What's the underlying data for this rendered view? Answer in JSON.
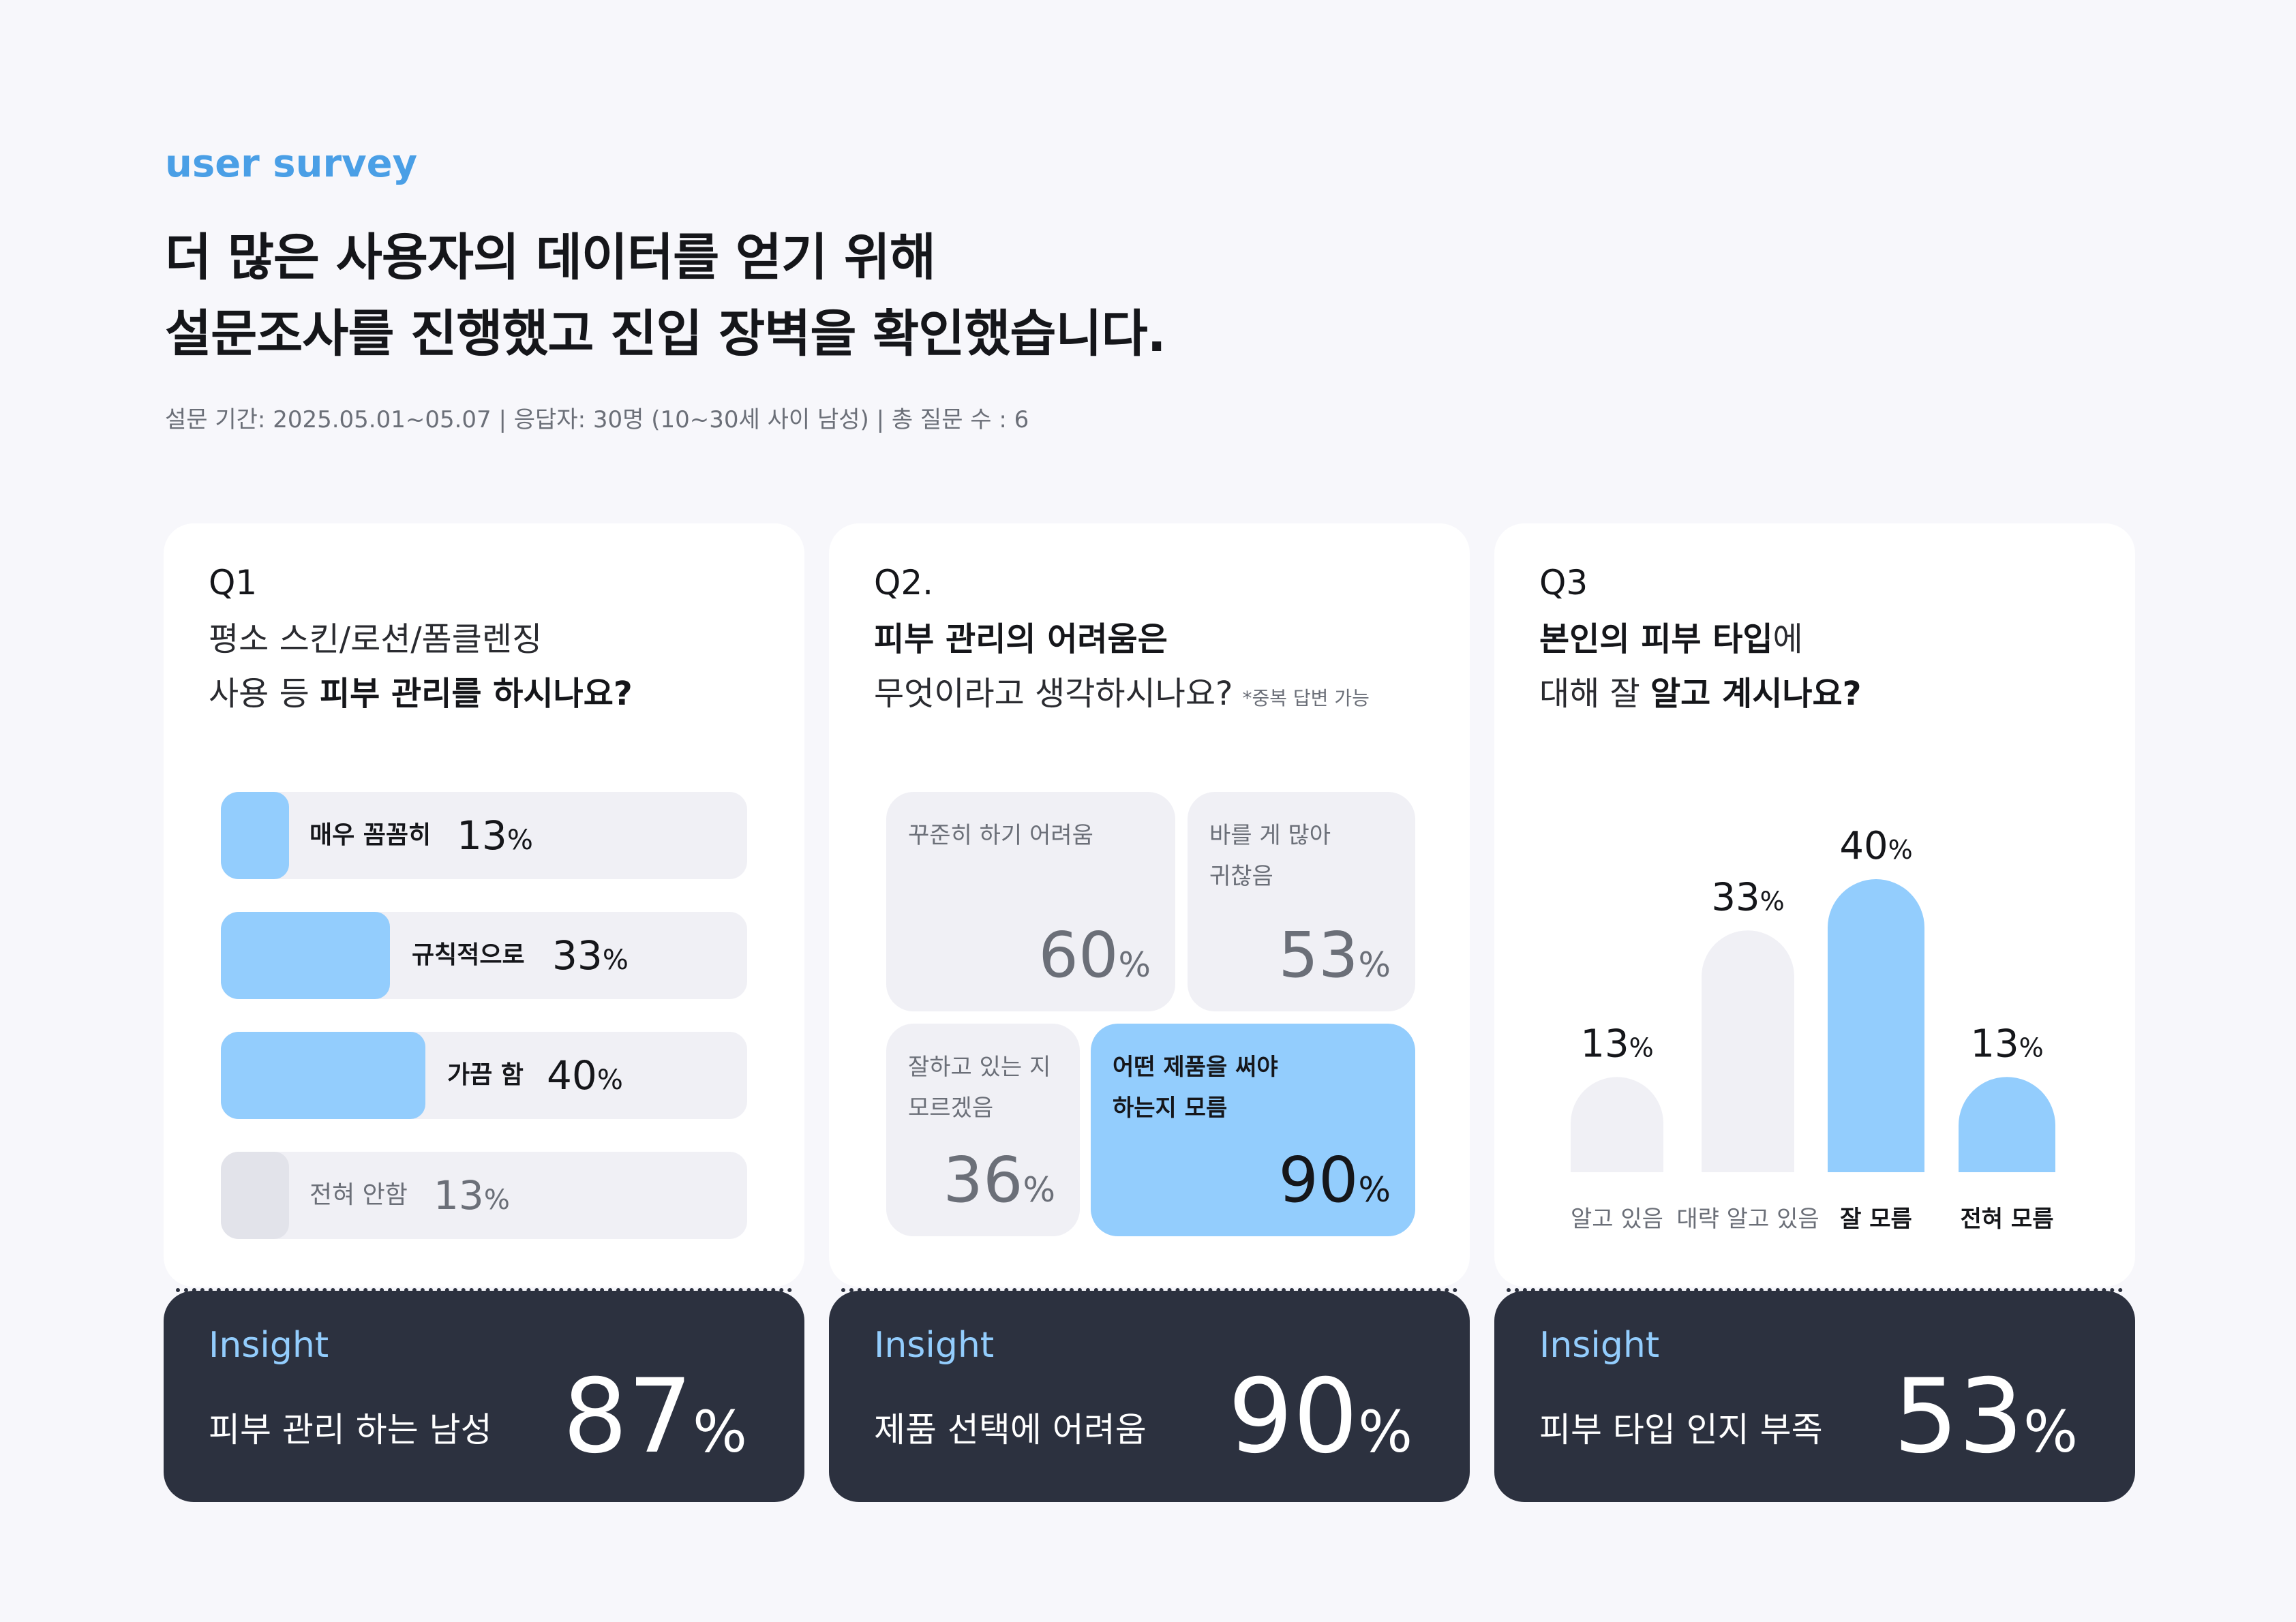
{
  "eyebrow": "user survey",
  "headline": {
    "line1": "더 많은 사용자의 데이터를 얻기 위해",
    "line2": "설문조사를 진행했고 진입 장벽을 확인했습니다."
  },
  "meta": "설문 기간: 2025.05.01~05.07 | 응답자: 30명 (10~30세 사이 남성) | 총 질문 수 : 6",
  "colors": {
    "accent": "#4a9fe6",
    "highlight": "#93cdfd",
    "muted": "#f0f0f5",
    "dark": "#2c313f"
  },
  "q1": {
    "num": "Q1",
    "line1": "평소 스킨/로션/폼클렌징",
    "line2_pre": "사용 등 ",
    "line2_bold": "피부 관리를 하시나요?",
    "options": [
      {
        "label": "매우 꼼꼼히",
        "value": "13",
        "unit": "%"
      },
      {
        "label": "규칙적으로",
        "value": "33",
        "unit": "%"
      },
      {
        "label": "가끔 함",
        "value": "40",
        "unit": "%"
      },
      {
        "label": "전혀 안함",
        "value": "13",
        "unit": "%"
      }
    ]
  },
  "q2": {
    "num": "Q2.",
    "line1_bold": "피부 관리의 어려움은",
    "line2": "무엇이라고 생각하시나요?",
    "note": "*중복 답변 가능",
    "tiles": [
      {
        "label": "꾸준히 하기 어려움",
        "value": "60",
        "unit": "%"
      },
      {
        "label": "바를 게 많아 귀찮음",
        "value": "53",
        "unit": "%"
      },
      {
        "label": "잘하고 있는 지 모르겠음",
        "value": "36",
        "unit": "%"
      },
      {
        "label": "어떤 제품을 써야 하는지 모름",
        "value": "90",
        "unit": "%"
      }
    ]
  },
  "q3": {
    "num": "Q3",
    "line1_bold": "본인의 피부 타입",
    "line1_post": "에",
    "line2_pre": "대해 잘 ",
    "line2_bold": "알고 계시나요?"
  },
  "chart_data": {
    "type": "bar",
    "categories": [
      "알고 있음",
      "대략 알고 있음",
      "잘 모름",
      "전혀 모름"
    ],
    "values": [
      13,
      33,
      40,
      13
    ],
    "unit": "%",
    "highlighted": [
      false,
      false,
      true,
      true
    ]
  },
  "insights": [
    {
      "title": "Insight",
      "text": "피부 관리 하는 남성",
      "value": "87",
      "unit": "%"
    },
    {
      "title": "Insight",
      "text": "제품 선택에 어려움",
      "value": "90",
      "unit": "%"
    },
    {
      "title": "Insight",
      "text": "피부 타입 인지 부족",
      "value": "53",
      "unit": "%"
    }
  ]
}
